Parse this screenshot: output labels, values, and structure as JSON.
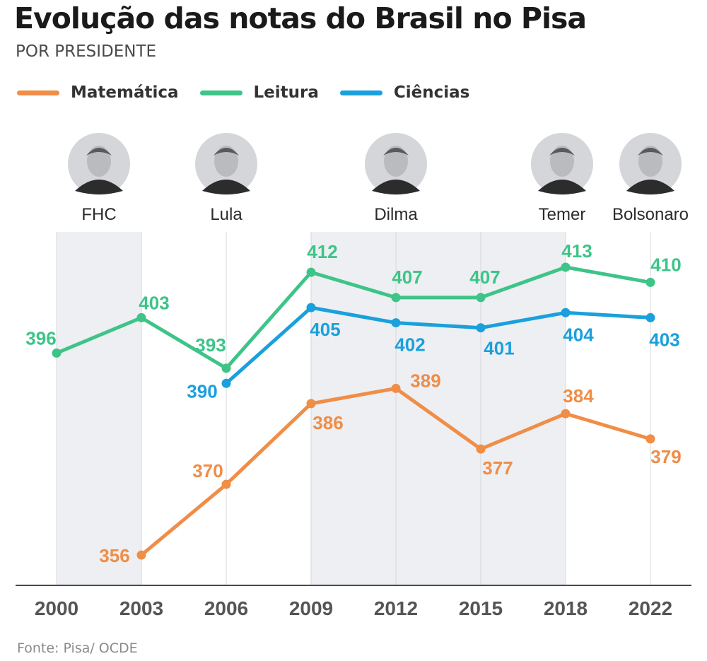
{
  "title": "Evolução das notas do Brasil no Pisa",
  "subtitle": "POR PRESIDENTE",
  "source": "Fonte: Pisa/ OCDE",
  "colors": {
    "matematica": "#f08d47",
    "leitura": "#3ec488",
    "ciencias": "#1aa0dc",
    "shade": "#edeff2",
    "axis": "#4a4a4a",
    "grid": "#d6d9dd"
  },
  "presidents": [
    {
      "name": "FHC",
      "icon": "portrait-fhc"
    },
    {
      "name": "Lula",
      "icon": "portrait-lula"
    },
    {
      "name": "Dilma",
      "icon": "portrait-dilma"
    },
    {
      "name": "Temer",
      "icon": "portrait-temer"
    },
    {
      "name": "Bolsonaro",
      "icon": "portrait-bolsonaro"
    }
  ],
  "chart_data": {
    "type": "line",
    "title": "Evolução das notas do Brasil no Pisa",
    "subtitle": "POR PRESIDENTE",
    "xlabel": "",
    "ylabel": "",
    "categories": [
      "2000",
      "2003",
      "2006",
      "2009",
      "2012",
      "2015",
      "2018",
      "2022"
    ],
    "ylim": [
      350,
      420
    ],
    "grid": "vertical",
    "legend_position": "top-left",
    "series": [
      {
        "name": "Matemática",
        "key": "matematica",
        "values": [
          null,
          356,
          370,
          386,
          389,
          377,
          384,
          379
        ]
      },
      {
        "name": "Leitura",
        "key": "leitura",
        "values": [
          396,
          403,
          393,
          412,
          407,
          407,
          413,
          410
        ]
      },
      {
        "name": "Ciências",
        "key": "ciencias",
        "values": [
          null,
          null,
          390,
          405,
          402,
          401,
          404,
          403
        ]
      }
    ],
    "president_periods": [
      {
        "name": "FHC",
        "from": "2000",
        "to": "2003"
      },
      {
        "name": "Lula",
        "from": "2003",
        "to": "2009"
      },
      {
        "name": "Dilma",
        "from": "2009",
        "to": "2015"
      },
      {
        "name": "Temer",
        "from": "2015",
        "to": "2018"
      },
      {
        "name": "Bolsonaro",
        "from": "2018",
        "to": "2022"
      }
    ]
  }
}
